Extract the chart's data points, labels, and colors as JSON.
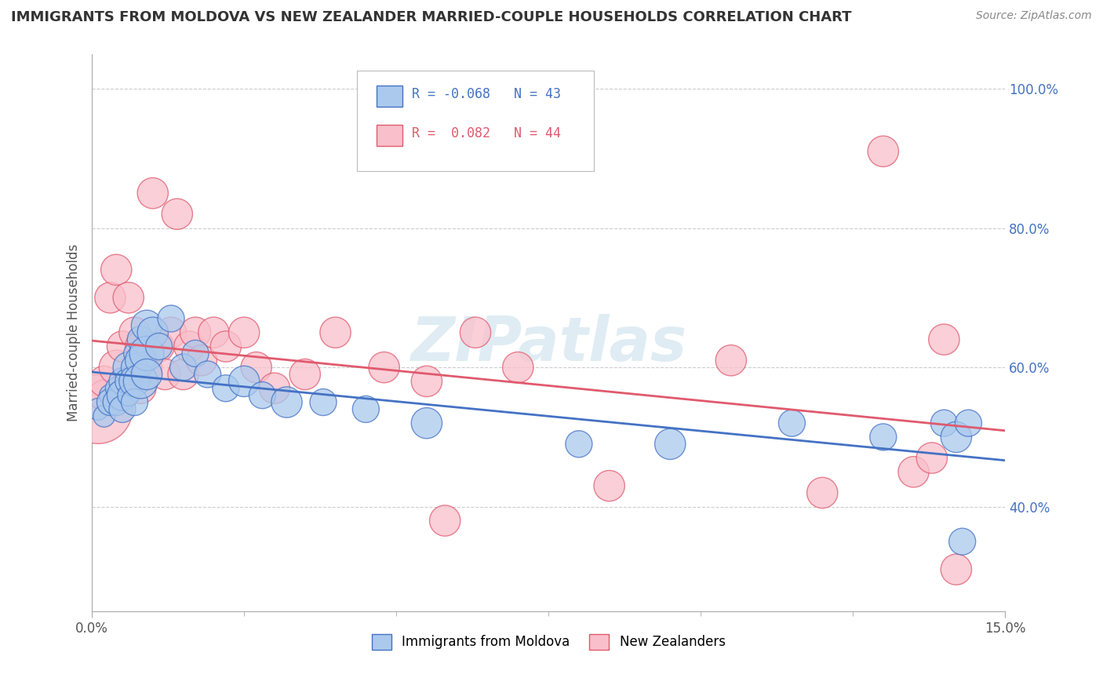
{
  "title": "IMMIGRANTS FROM MOLDOVA VS NEW ZEALANDER MARRIED-COUPLE HOUSEHOLDS CORRELATION CHART",
  "source": "Source: ZipAtlas.com",
  "ylabel": "Married-couple Households",
  "xlim": [
    0.0,
    0.15
  ],
  "ylim": [
    0.25,
    1.05
  ],
  "yticks": [
    0.4,
    0.6,
    0.8,
    1.0
  ],
  "yticklabels": [
    "40.0%",
    "60.0%",
    "80.0%",
    "100.0%"
  ],
  "legend_r_blue": "-0.068",
  "legend_n_blue": "43",
  "legend_r_pink": "0.082",
  "legend_n_pink": "44",
  "blue_color": "#aac9ed",
  "pink_color": "#f9c0cb",
  "blue_line_color": "#4472c4",
  "pink_line_color": "#e05a6e",
  "grid_color": "#cccccc",
  "background_color": "#ffffff",
  "watermark": "ZIPatlas",
  "blue_x": [
    0.001,
    0.002,
    0.003,
    0.003,
    0.004,
    0.004,
    0.005,
    0.005,
    0.005,
    0.006,
    0.006,
    0.006,
    0.007,
    0.007,
    0.007,
    0.007,
    0.008,
    0.008,
    0.008,
    0.009,
    0.009,
    0.009,
    0.01,
    0.011,
    0.013,
    0.015,
    0.017,
    0.019,
    0.022,
    0.025,
    0.028,
    0.032,
    0.038,
    0.045,
    0.055,
    0.08,
    0.095,
    0.115,
    0.13,
    0.14,
    0.142,
    0.143,
    0.144
  ],
  "blue_y": [
    0.54,
    0.53,
    0.56,
    0.55,
    0.57,
    0.55,
    0.58,
    0.56,
    0.54,
    0.6,
    0.58,
    0.56,
    0.62,
    0.6,
    0.58,
    0.55,
    0.64,
    0.61,
    0.58,
    0.66,
    0.62,
    0.59,
    0.65,
    0.63,
    0.67,
    0.6,
    0.62,
    0.59,
    0.57,
    0.58,
    0.56,
    0.55,
    0.55,
    0.54,
    0.52,
    0.49,
    0.49,
    0.52,
    0.5,
    0.52,
    0.5,
    0.35,
    0.52
  ],
  "blue_size": [
    40,
    40,
    40,
    60,
    40,
    60,
    60,
    80,
    60,
    80,
    60,
    40,
    40,
    60,
    80,
    60,
    60,
    80,
    100,
    80,
    100,
    80,
    80,
    60,
    60,
    60,
    60,
    60,
    60,
    80,
    60,
    80,
    60,
    60,
    80,
    60,
    80,
    60,
    60,
    60,
    80,
    60,
    60
  ],
  "pink_x": [
    0.001,
    0.002,
    0.002,
    0.003,
    0.004,
    0.004,
    0.005,
    0.005,
    0.006,
    0.006,
    0.007,
    0.007,
    0.008,
    0.008,
    0.009,
    0.01,
    0.011,
    0.012,
    0.013,
    0.014,
    0.015,
    0.016,
    0.017,
    0.018,
    0.02,
    0.022,
    0.025,
    0.027,
    0.03,
    0.035,
    0.04,
    0.048,
    0.055,
    0.058,
    0.063,
    0.07,
    0.085,
    0.105,
    0.12,
    0.13,
    0.135,
    0.138,
    0.14,
    0.142
  ],
  "pink_y": [
    0.54,
    0.56,
    0.58,
    0.7,
    0.6,
    0.74,
    0.56,
    0.63,
    0.58,
    0.7,
    0.58,
    0.65,
    0.63,
    0.57,
    0.6,
    0.85,
    0.63,
    0.59,
    0.65,
    0.82,
    0.59,
    0.63,
    0.65,
    0.61,
    0.65,
    0.63,
    0.65,
    0.6,
    0.57,
    0.59,
    0.65,
    0.6,
    0.58,
    0.38,
    0.65,
    0.6,
    0.43,
    0.61,
    0.42,
    0.91,
    0.45,
    0.47,
    0.64,
    0.31
  ],
  "pink_size": [
    400,
    80,
    80,
    80,
    100,
    80,
    80,
    80,
    80,
    80,
    80,
    80,
    80,
    80,
    80,
    80,
    80,
    80,
    80,
    80,
    80,
    80,
    80,
    80,
    80,
    80,
    80,
    80,
    80,
    80,
    80,
    80,
    80,
    80,
    80,
    80,
    80,
    80,
    80,
    80,
    80,
    80,
    80,
    80
  ]
}
